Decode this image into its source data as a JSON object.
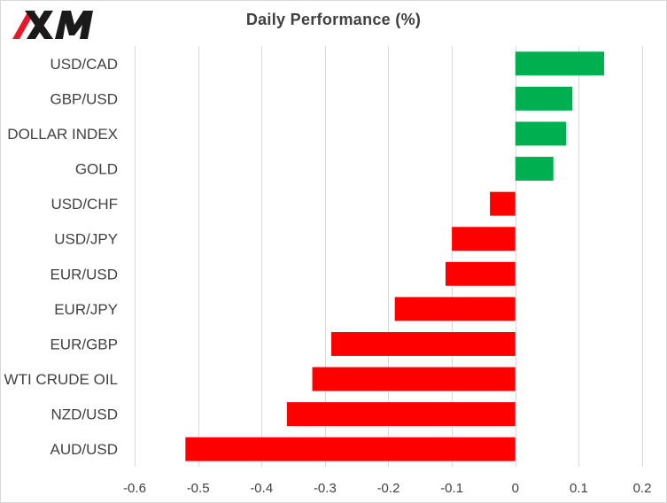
{
  "header": {
    "logo_text": "XM"
  },
  "chart_data": {
    "type": "bar",
    "orientation": "horizontal",
    "title": "Daily Performance  (%)",
    "categories": [
      "USD/CAD",
      "GBP/USD",
      "DOLLAR INDEX",
      "GOLD",
      "USD/CHF",
      "USD/JPY",
      "EUR/USD",
      "EUR/JPY",
      "EUR/GBP",
      "WTI CRUDE OIL",
      "NZD/USD",
      "AUD/USD"
    ],
    "values": [
      0.14,
      0.09,
      0.08,
      0.06,
      -0.04,
      -0.1,
      -0.11,
      -0.19,
      -0.29,
      -0.32,
      -0.36,
      -0.52
    ],
    "xlim": [
      -0.6,
      0.2
    ],
    "xticks": [
      "-0.6",
      "-0.5",
      "-0.4",
      "-0.3",
      "-0.2",
      "-0.1",
      "0",
      "0.1",
      "0.2"
    ],
    "xtick_values": [
      -0.6,
      -0.5,
      -0.4,
      -0.3,
      -0.2,
      -0.1,
      0,
      0.1,
      0.2
    ],
    "xlabel": "",
    "ylabel": "",
    "grid": "vertical",
    "positive_color": "#00b050",
    "negative_color": "#ff0000",
    "gridline_color": "#d9d9d9"
  }
}
